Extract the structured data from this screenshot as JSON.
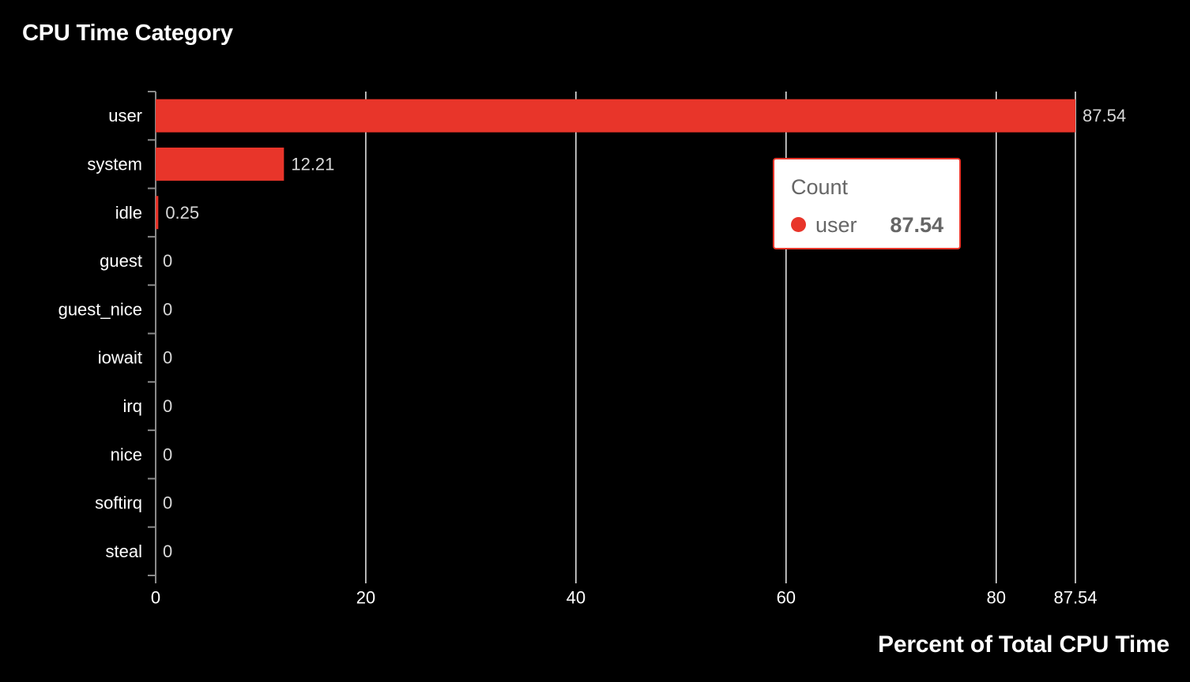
{
  "chart_data": {
    "type": "bar",
    "orientation": "horizontal",
    "title": "CPU Time Category",
    "xlabel": "Percent of Total CPU Time",
    "ylabel": "",
    "categories": [
      "user",
      "system",
      "idle",
      "guest",
      "guest_nice",
      "iowait",
      "irq",
      "nice",
      "softirq",
      "steal"
    ],
    "values": [
      87.54,
      12.21,
      0.25,
      0,
      0,
      0,
      0,
      0,
      0,
      0
    ],
    "value_labels": [
      "87.54",
      "12.21",
      "0.25",
      "0",
      "0",
      "0",
      "0",
      "0",
      "0",
      "0"
    ],
    "xlim": [
      0,
      87.54
    ],
    "x_ticks": [
      0,
      20,
      40,
      60,
      80,
      87.54
    ],
    "x_tick_labels": [
      "0",
      "20",
      "40",
      "60",
      "80",
      "87.54"
    ],
    "grid": true,
    "bar_color": "#e8352a",
    "tooltip": {
      "title": "Count",
      "series": "user",
      "value": "87.54"
    }
  }
}
